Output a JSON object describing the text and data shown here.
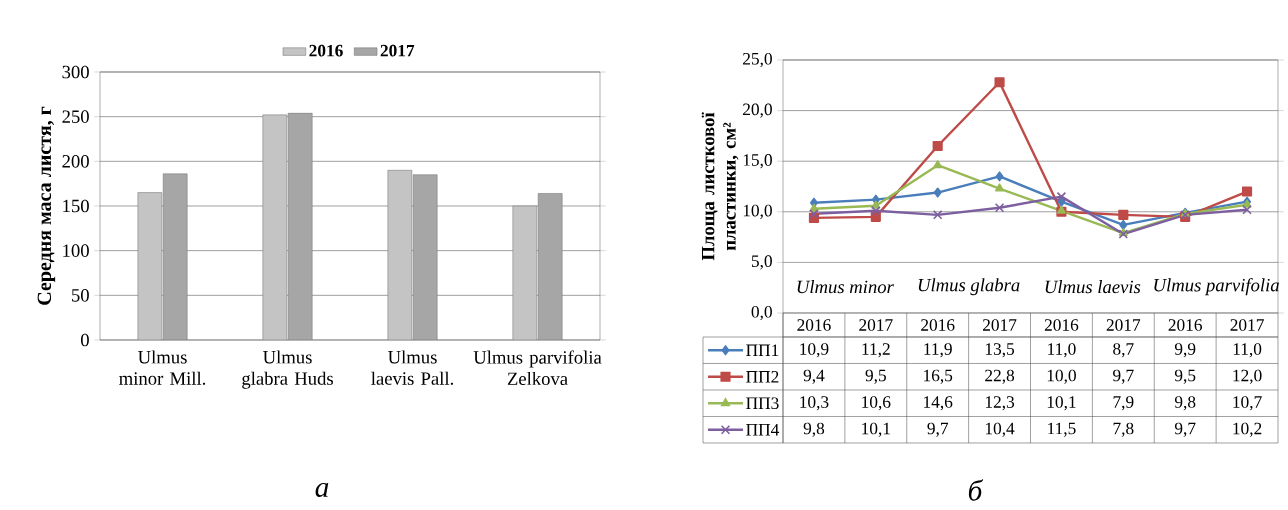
{
  "chart_data": [
    {
      "type": "bar",
      "title": "а",
      "ylabel": "Середня маса листя, г",
      "categories": [
        "Ulmus minor Mill.",
        "Ulmus glabra Huds",
        "Ulmus laevis Pall.",
        "Ulmus parvifolia Zelkova"
      ],
      "series": [
        {
          "name": "2016",
          "color": "#c4c4c4",
          "values": [
            165,
            252,
            190,
            150
          ]
        },
        {
          "name": "2017",
          "color": "#a6a6a6",
          "values": [
            186,
            254,
            185,
            164
          ]
        }
      ],
      "ylim": [
        0,
        300
      ],
      "yticks": [
        0,
        50,
        100,
        150,
        200,
        250,
        300
      ],
      "grid": "y",
      "legend": "top"
    },
    {
      "type": "line",
      "title": "б",
      "ylabel": "Площа листкової пластинки, см²",
      "categories": [
        "2016",
        "2017",
        "2016",
        "2017",
        "2016",
        "2017",
        "2016",
        "2017"
      ],
      "annotations": [
        "Ulmus minor",
        "Ulmus glabra",
        "Ulmus laevis",
        "Ulmus parvifolia"
      ],
      "series": [
        {
          "name": "ПП1",
          "color": "#4a7ebb",
          "marker": "diamond",
          "values": [
            10.9,
            11.2,
            11.9,
            13.5,
            11.0,
            8.7,
            9.9,
            11.0
          ],
          "value_labels": [
            "10,9",
            "11,2",
            "11,9",
            "13,5",
            "11,0",
            "8,7",
            "9,9",
            "11,0"
          ]
        },
        {
          "name": "ПП2",
          "color": "#be4b48",
          "marker": "square",
          "values": [
            9.4,
            9.5,
            16.5,
            22.8,
            10.0,
            9.7,
            9.5,
            12.0
          ],
          "value_labels": [
            "9,4",
            "9,5",
            "16,5",
            "22,8",
            "10,0",
            "9,7",
            "9,5",
            "12,0"
          ]
        },
        {
          "name": "ПП3",
          "color": "#98b954",
          "marker": "triangle",
          "values": [
            10.3,
            10.6,
            14.6,
            12.3,
            10.1,
            7.9,
            9.8,
            10.7
          ],
          "value_labels": [
            "10,3",
            "10,6",
            "14,6",
            "12,3",
            "10,1",
            "7,9",
            "9,8",
            "10,7"
          ]
        },
        {
          "name": "ПП4",
          "color": "#7d5fa0",
          "marker": "cross",
          "values": [
            9.8,
            10.1,
            9.7,
            10.4,
            11.5,
            7.8,
            9.7,
            10.2
          ],
          "value_labels": [
            "9,8",
            "10,1",
            "9,7",
            "10,4",
            "11,5",
            "7,8",
            "9,7",
            "10,2"
          ]
        }
      ],
      "ylim": [
        0,
        25
      ],
      "yticks": [
        {
          "value": 0,
          "label": "0,0"
        },
        {
          "value": 5,
          "label": "5,0"
        },
        {
          "value": 10,
          "label": "10,0"
        },
        {
          "value": 15,
          "label": "15,0"
        },
        {
          "value": 20,
          "label": "20,0"
        },
        {
          "value": 25,
          "label": "25,0"
        }
      ],
      "grid": "y",
      "legend": "bottom"
    }
  ]
}
